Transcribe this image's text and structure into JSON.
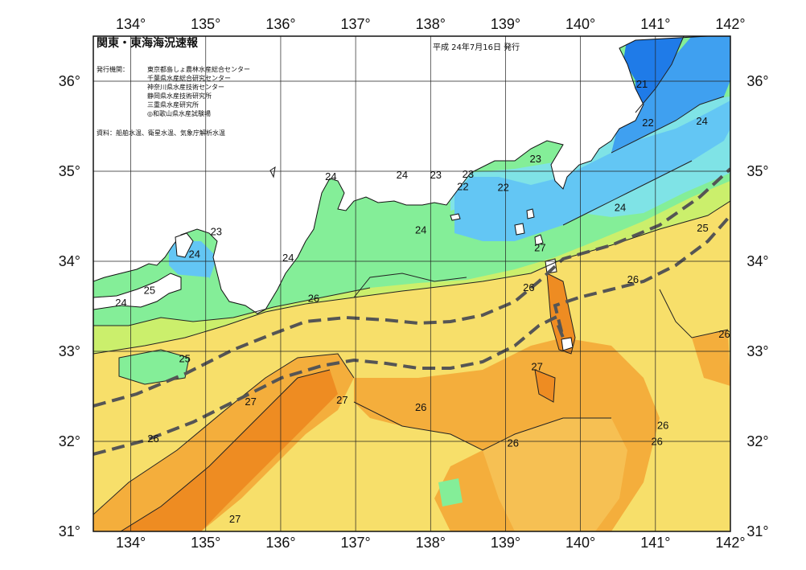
{
  "map": {
    "title": "関東・東海海況速報",
    "date": "平成 24年7月16日 発行",
    "issuer_label": "発行機関：",
    "issuers": [
      "東京都島しょ農林水産総合センター",
      "千葉県水産総合研究センター",
      "神奈川県水産技術センター",
      "静岡県水産技術研究所",
      "三重県水産研究所",
      "◎和歌山県水産試験場"
    ],
    "source": "資料：船舶水温、衛星水温、気象庁解析水温",
    "lon_labels": [
      "134°",
      "135°",
      "136°",
      "137°",
      "138°",
      "139°",
      "140°",
      "141°",
      "142°"
    ],
    "lat_labels": [
      "36°",
      "35°",
      "34°",
      "33°",
      "32°",
      "31°"
    ]
  },
  "chart_data": {
    "type": "heatmap",
    "title": "関東・東海海況速報",
    "xlim": [
      133.5,
      142
    ],
    "ylim": [
      31,
      36.5
    ],
    "colors": {
      "c20": "#1f7be8",
      "c21": "#3fa0f0",
      "c22": "#63c6f4",
      "c23": "#7fe3e6",
      "c24": "#84ee98",
      "c25": "#cbef6c",
      "c26": "#f6e46a",
      "c27": "#f4ae3c",
      "c28": "#ee8c22",
      "land": "#ffffff",
      "kuroshio": "#555555"
    },
    "isotherm_labels": [
      {
        "v": "21",
        "lon": 140.82,
        "lat": 35.93
      },
      {
        "v": "22",
        "lon": 140.9,
        "lat": 35.5
      },
      {
        "v": "24",
        "lon": 141.62,
        "lat": 35.52
      },
      {
        "v": "23",
        "lon": 139.4,
        "lat": 35.1
      },
      {
        "v": "22",
        "lon": 138.97,
        "lat": 34.78
      },
      {
        "v": "23",
        "lon": 138.07,
        "lat": 34.92
      },
      {
        "v": "24",
        "lon": 137.62,
        "lat": 34.92
      },
      {
        "v": "23",
        "lon": 138.5,
        "lat": 34.93
      },
      {
        "v": "22",
        "lon": 138.43,
        "lat": 34.79
      },
      {
        "v": "24",
        "lon": 136.67,
        "lat": 34.9
      },
      {
        "v": "24",
        "lon": 137.87,
        "lat": 34.31
      },
      {
        "v": "24",
        "lon": 140.53,
        "lat": 34.56
      },
      {
        "v": "25",
        "lon": 141.63,
        "lat": 34.33
      },
      {
        "v": "23",
        "lon": 135.14,
        "lat": 34.29
      },
      {
        "v": "24",
        "lon": 134.85,
        "lat": 34.04
      },
      {
        "v": "24",
        "lon": 136.1,
        "lat": 34.0
      },
      {
        "v": "27",
        "lon": 139.46,
        "lat": 34.11
      },
      {
        "v": "26",
        "lon": 140.7,
        "lat": 33.76
      },
      {
        "v": "26",
        "lon": 139.31,
        "lat": 33.67
      },
      {
        "v": "26",
        "lon": 136.44,
        "lat": 33.55
      },
      {
        "v": "25",
        "lon": 134.25,
        "lat": 33.64
      },
      {
        "v": "24",
        "lon": 133.87,
        "lat": 33.5
      },
      {
        "v": "26",
        "lon": 141.92,
        "lat": 33.15
      },
      {
        "v": "25",
        "lon": 134.72,
        "lat": 32.88
      },
      {
        "v": "27",
        "lon": 139.42,
        "lat": 32.79
      },
      {
        "v": "27",
        "lon": 135.6,
        "lat": 32.4
      },
      {
        "v": "27",
        "lon": 136.82,
        "lat": 32.42
      },
      {
        "v": "26",
        "lon": 137.87,
        "lat": 32.34
      },
      {
        "v": "26",
        "lon": 141.1,
        "lat": 32.14
      },
      {
        "v": "26",
        "lon": 141.02,
        "lat": 31.96
      },
      {
        "v": "26",
        "lon": 134.3,
        "lat": 31.99
      },
      {
        "v": "26",
        "lon": 139.1,
        "lat": 31.94
      },
      {
        "v": "27",
        "lon": 135.39,
        "lat": 31.1
      }
    ]
  }
}
